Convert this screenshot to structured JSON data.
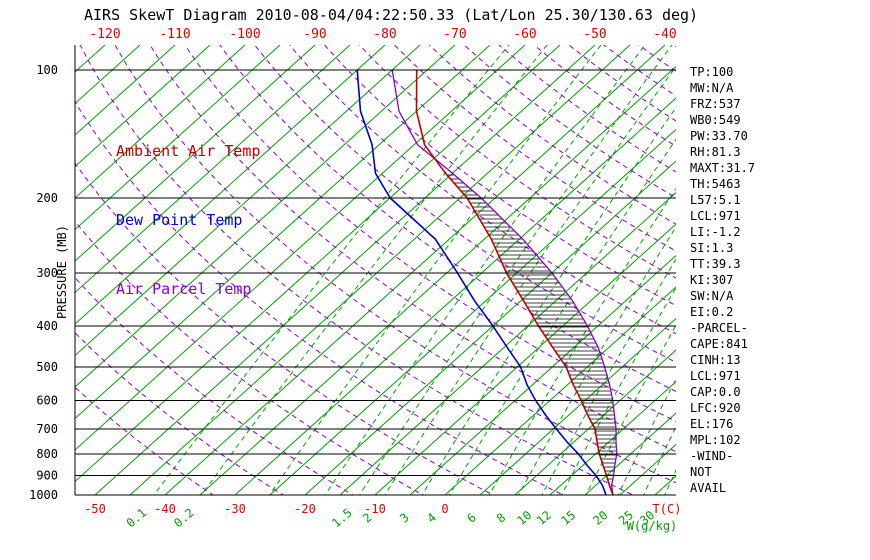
{
  "title": "AIRS SkewT Diagram 2010-08-04/04:22:50.33 (Lat/Lon 25.30/130.63 deg)",
  "legend": {
    "ambient": "Ambient Air Temp",
    "dewpoint": "Dew Point Temp",
    "parcel": "Air Parcel Temp"
  },
  "axes": {
    "pressure_label": "PRESSURE (MB)",
    "pressure_ticks": [
      100,
      200,
      300,
      400,
      500,
      600,
      700,
      800,
      900,
      1000
    ],
    "top_temp_labels": [
      -120,
      -110,
      -100,
      -90,
      -80,
      -70,
      -60,
      -50,
      -40
    ],
    "bottom_temp_labels": [
      -50,
      -40,
      -30,
      -20,
      -10,
      0
    ],
    "temp_unit_label": "T(C)",
    "mixing_unit_label": "W(g/kg)",
    "mixing_labels": [
      0.1,
      0.2,
      1.5,
      2,
      3,
      4,
      6,
      8,
      10,
      12,
      15,
      20,
      25,
      30
    ]
  },
  "stats": [
    "TP:100",
    "MW:N/A",
    "FRZ:537",
    "WB0:549",
    "PW:33.70",
    "RH:81.3",
    "MAXT:31.7",
    "TH:5463",
    "L57:5.1",
    "LCL:971",
    "LI:-1.2",
    "SI:1.3",
    "TT:39.3",
    "KI:307",
    "SW:N/A",
    "EI:0.2",
    "-PARCEL-",
    "CAPE:841",
    "CINH:13",
    "LCL:971",
    "CAP:0.0",
    "LFC:920",
    "EL:176",
    "MPL:102",
    "-WIND-",
    "NOT",
    "AVAIL"
  ],
  "chart_data": {
    "type": "line",
    "title": "AIRS SkewT Diagram 2010-08-04/04:22:50.33 (Lat/Lon 25.30/130.63 deg)",
    "xlabel": "T(C)",
    "ylabel": "PRESSURE (MB)",
    "y_scale": "log",
    "y_range": [
      100,
      1000
    ],
    "x_range_at_surface": [
      -52,
      33
    ],
    "isotherm_step_c": 5,
    "grid": true,
    "legend_position": "top-left",
    "series": [
      {
        "role": "ambient",
        "name": "Ambient Air Temp",
        "color": "#c00000",
        "pressure": [
          1000,
          950,
          900,
          850,
          800,
          750,
          700,
          650,
          600,
          550,
          500,
          450,
          400,
          350,
          300,
          250,
          200,
          175,
          150,
          125,
          100
        ],
        "temp": [
          24.0,
          22.0,
          20.0,
          17.8,
          15.5,
          13.3,
          11.0,
          7.8,
          4.5,
          0.8,
          -3.0,
          -8.0,
          -13.5,
          -19.5,
          -26.5,
          -34.0,
          -44.0,
          -51.0,
          -58.5,
          -65.0,
          -71.5
        ]
      },
      {
        "role": "dewpoint",
        "name": "Dew Point Temp",
        "color": "#0000cc",
        "pressure": [
          1000,
          950,
          900,
          850,
          800,
          750,
          700,
          650,
          600,
          550,
          500,
          450,
          400,
          350,
          300,
          250,
          200,
          175,
          150,
          125,
          100
        ],
        "temp": [
          23.0,
          21.0,
          18.5,
          15.5,
          12.5,
          9.0,
          5.5,
          1.8,
          -2.0,
          -5.8,
          -9.5,
          -14.5,
          -20.0,
          -26.5,
          -33.5,
          -42.0,
          -55.0,
          -61.0,
          -66.0,
          -73.0,
          -80.0
        ]
      },
      {
        "role": "parcel",
        "name": "Air Parcel Temp",
        "color": "#8800cc",
        "pressure": [
          1000,
          950,
          900,
          850,
          800,
          750,
          700,
          650,
          600,
          550,
          500,
          450,
          400,
          350,
          300,
          250,
          200,
          175,
          150,
          125,
          100
        ],
        "temp": [
          24.0,
          22.3,
          21.0,
          19.5,
          18.0,
          16.0,
          14.0,
          11.6,
          9.0,
          6.0,
          2.5,
          -1.5,
          -6.5,
          -12.5,
          -20.0,
          -29.5,
          -42.0,
          -50.0,
          -59.5,
          -67.5,
          -75.0
        ]
      }
    ],
    "cape_hatch": {
      "from_pressure": 920,
      "to_pressure": 176
    },
    "mixing_ratio_lines": [
      0.1,
      0.2,
      0.5,
      1,
      1.5,
      2,
      3,
      4,
      6,
      8,
      10,
      12,
      15,
      20,
      25,
      30
    ],
    "dry_adiabats_theta_k": {
      "min": 240,
      "max": 500,
      "step": 10
    },
    "colors": {
      "isotherm": "#00a000",
      "mixing": "#00a000",
      "adiabat": "#8800cc",
      "pressure_line": "#000000",
      "labels_temp": "#e00000",
      "labels_mixing": "#00a000",
      "labels_pressure": "#000000"
    }
  }
}
